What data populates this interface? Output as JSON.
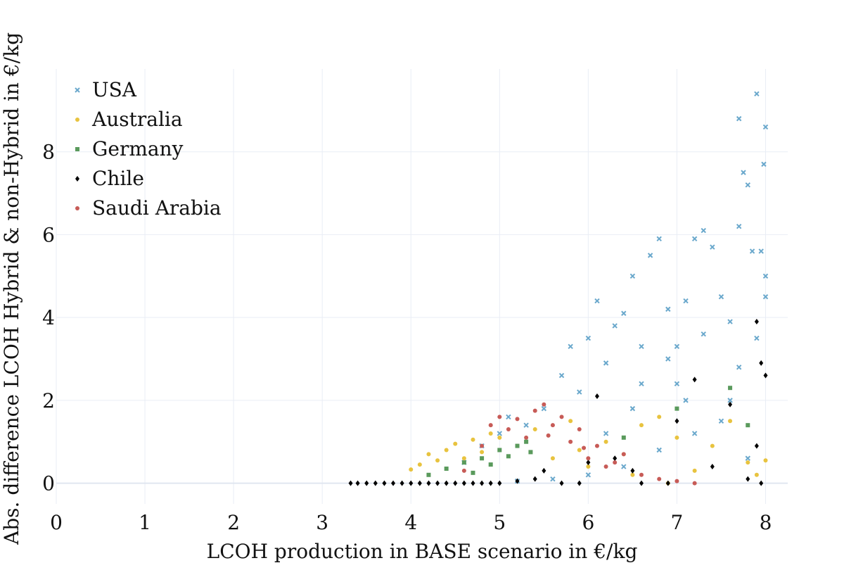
{
  "chart_data": {
    "type": "scatter",
    "title": "",
    "xlabel": "LCOH production in BASE scenario in €/kg",
    "ylabel": "Abs. difference LCOH Hybrid & non-Hybrid in €/kg",
    "xlim": [
      0,
      8.25
    ],
    "ylim": [
      -0.5,
      10.0
    ],
    "xticks": [
      0,
      1,
      2,
      3,
      4,
      5,
      6,
      7,
      8
    ],
    "yticks": [
      0,
      2,
      4,
      6,
      8
    ],
    "xtick_labels": [
      "0",
      "1",
      "2",
      "3",
      "4",
      "5",
      "6",
      "7",
      "8"
    ],
    "ytick_labels": [
      "0",
      "2",
      "4",
      "6",
      "8"
    ],
    "grid": true,
    "legend_position": "top-left",
    "series": [
      {
        "name": "USA",
        "marker": "x",
        "color": "#6aa8cc",
        "points": [
          [
            4.6,
            0.5
          ],
          [
            4.8,
            0.9
          ],
          [
            5.0,
            1.2
          ],
          [
            5.1,
            1.6
          ],
          [
            5.3,
            1.4
          ],
          [
            5.5,
            1.8
          ],
          [
            5.7,
            2.6
          ],
          [
            5.8,
            3.3
          ],
          [
            5.9,
            2.2
          ],
          [
            6.0,
            3.5
          ],
          [
            6.1,
            4.4
          ],
          [
            6.2,
            2.9
          ],
          [
            6.3,
            3.8
          ],
          [
            6.4,
            4.1
          ],
          [
            6.5,
            5.0
          ],
          [
            6.6,
            2.4
          ],
          [
            6.7,
            5.5
          ],
          [
            6.8,
            5.9
          ],
          [
            6.9,
            4.2
          ],
          [
            7.0,
            3.3
          ],
          [
            7.1,
            4.4
          ],
          [
            7.2,
            5.9
          ],
          [
            7.3,
            6.1
          ],
          [
            7.4,
            5.7
          ],
          [
            7.5,
            4.5
          ],
          [
            7.6,
            3.9
          ],
          [
            7.7,
            6.2
          ],
          [
            7.7,
            8.8
          ],
          [
            7.75,
            7.5
          ],
          [
            7.8,
            7.2
          ],
          [
            7.85,
            5.6
          ],
          [
            7.9,
            9.4
          ],
          [
            7.95,
            5.6
          ],
          [
            8.0,
            8.6
          ],
          [
            7.98,
            7.7
          ],
          [
            8.0,
            5.0
          ],
          [
            8.0,
            4.5
          ],
          [
            7.9,
            3.5
          ],
          [
            7.6,
            2.0
          ],
          [
            7.2,
            1.2
          ],
          [
            6.8,
            0.8
          ],
          [
            6.4,
            0.4
          ],
          [
            6.0,
            0.2
          ],
          [
            5.6,
            0.1
          ],
          [
            5.2,
            0.05
          ],
          [
            7.8,
            0.6
          ],
          [
            7.5,
            1.5
          ],
          [
            7.0,
            2.4
          ],
          [
            6.5,
            1.8
          ],
          [
            6.2,
            1.2
          ],
          [
            6.9,
            3.0
          ],
          [
            7.3,
            3.6
          ],
          [
            7.7,
            2.8
          ],
          [
            6.6,
            3.3
          ],
          [
            7.1,
            2.0
          ]
        ]
      },
      {
        "name": "Australia",
        "marker": "dot",
        "color": "#e8c33f",
        "points": [
          [
            4.0,
            0.33
          ],
          [
            4.1,
            0.45
          ],
          [
            4.2,
            0.7
          ],
          [
            4.3,
            0.55
          ],
          [
            4.4,
            0.8
          ],
          [
            4.5,
            0.95
          ],
          [
            4.6,
            0.6
          ],
          [
            4.7,
            1.05
          ],
          [
            4.8,
            0.75
          ],
          [
            4.9,
            1.2
          ],
          [
            5.0,
            1.1
          ],
          [
            5.2,
            0.9
          ],
          [
            5.4,
            1.3
          ],
          [
            5.6,
            0.6
          ],
          [
            5.8,
            1.5
          ],
          [
            6.0,
            0.4
          ],
          [
            6.2,
            1.0
          ],
          [
            6.4,
            0.7
          ],
          [
            6.6,
            1.4
          ],
          [
            6.8,
            1.6
          ],
          [
            7.0,
            1.1
          ],
          [
            7.2,
            0.3
          ],
          [
            7.4,
            0.9
          ],
          [
            7.6,
            1.5
          ],
          [
            7.8,
            0.5
          ],
          [
            8.0,
            0.55
          ],
          [
            7.9,
            0.2
          ],
          [
            6.9,
            0.0
          ],
          [
            6.5,
            0.2
          ],
          [
            5.9,
            0.8
          ]
        ]
      },
      {
        "name": "Germany",
        "marker": "square",
        "color": "#5a9a5c",
        "points": [
          [
            4.2,
            0.2
          ],
          [
            4.4,
            0.35
          ],
          [
            4.6,
            0.5
          ],
          [
            4.7,
            0.25
          ],
          [
            4.8,
            0.6
          ],
          [
            4.9,
            0.45
          ],
          [
            5.0,
            0.8
          ],
          [
            5.1,
            0.65
          ],
          [
            5.2,
            0.9
          ],
          [
            5.3,
            1.0
          ],
          [
            5.35,
            0.75
          ],
          [
            6.4,
            1.1
          ],
          [
            7.0,
            1.8
          ],
          [
            7.6,
            2.3
          ],
          [
            7.8,
            1.4
          ]
        ]
      },
      {
        "name": "Chile",
        "marker": "diamond",
        "color": "#000000",
        "points": [
          [
            3.32,
            0.0
          ],
          [
            3.4,
            0.0
          ],
          [
            3.5,
            0.0
          ],
          [
            3.6,
            0.0
          ],
          [
            3.7,
            0.0
          ],
          [
            3.8,
            0.0
          ],
          [
            3.9,
            0.0
          ],
          [
            4.0,
            0.0
          ],
          [
            4.1,
            0.0
          ],
          [
            4.2,
            0.0
          ],
          [
            4.3,
            0.0
          ],
          [
            4.4,
            0.0
          ],
          [
            4.5,
            0.0
          ],
          [
            4.6,
            0.0
          ],
          [
            4.7,
            0.0
          ],
          [
            4.8,
            0.0
          ],
          [
            4.9,
            0.0
          ],
          [
            5.0,
            0.0
          ],
          [
            5.2,
            0.05
          ],
          [
            5.4,
            0.1
          ],
          [
            5.5,
            0.3
          ],
          [
            5.7,
            0.0
          ],
          [
            5.9,
            0.0
          ],
          [
            6.0,
            0.5
          ],
          [
            6.1,
            2.1
          ],
          [
            6.3,
            0.6
          ],
          [
            6.5,
            0.3
          ],
          [
            6.6,
            0.0
          ],
          [
            6.9,
            0.0
          ],
          [
            7.0,
            1.5
          ],
          [
            7.2,
            2.5
          ],
          [
            7.4,
            0.4
          ],
          [
            7.6,
            1.9
          ],
          [
            7.8,
            0.1
          ],
          [
            7.9,
            3.9
          ],
          [
            7.95,
            2.9
          ],
          [
            8.0,
            2.6
          ],
          [
            7.9,
            0.9
          ],
          [
            7.95,
            0.0
          ]
        ]
      },
      {
        "name": "Saudi Arabia",
        "marker": "dot",
        "color": "#c75b57",
        "points": [
          [
            4.6,
            0.3
          ],
          [
            4.8,
            0.9
          ],
          [
            4.9,
            1.4
          ],
          [
            5.0,
            1.6
          ],
          [
            5.1,
            1.3
          ],
          [
            5.2,
            1.55
          ],
          [
            5.3,
            1.1
          ],
          [
            5.4,
            1.75
          ],
          [
            5.5,
            1.9
          ],
          [
            5.6,
            1.4
          ],
          [
            5.7,
            1.6
          ],
          [
            5.8,
            1.0
          ],
          [
            5.9,
            1.3
          ],
          [
            6.0,
            0.6
          ],
          [
            6.1,
            0.9
          ],
          [
            6.2,
            0.4
          ],
          [
            6.4,
            0.7
          ],
          [
            6.6,
            0.2
          ],
          [
            6.8,
            0.1
          ],
          [
            7.0,
            0.05
          ],
          [
            7.2,
            0.0
          ],
          [
            5.55,
            1.15
          ],
          [
            5.95,
            0.85
          ],
          [
            6.3,
            0.5
          ]
        ]
      }
    ]
  }
}
